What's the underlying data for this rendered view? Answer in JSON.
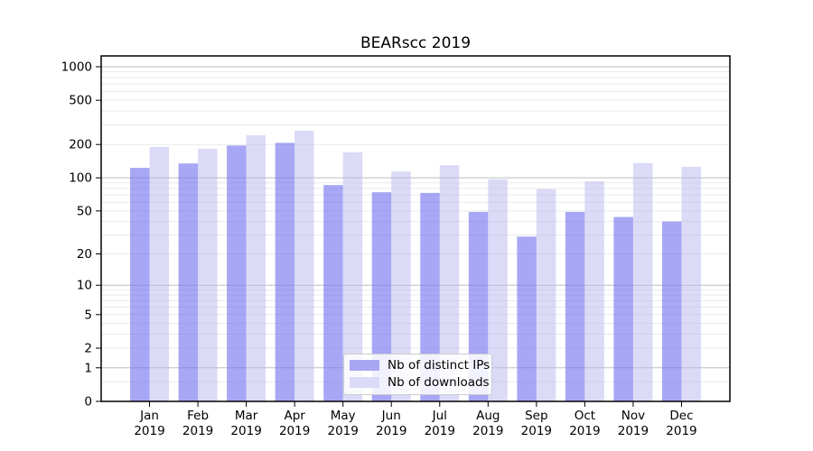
{
  "chart_data": {
    "type": "bar",
    "title": "BEARscc 2019",
    "categories": [
      "Jan",
      "Feb",
      "Mar",
      "Apr",
      "May",
      "Jun",
      "Jul",
      "Aug",
      "Sep",
      "Oct",
      "Nov",
      "Dec"
    ],
    "year": "2019",
    "yscale": "log1p",
    "ylim": [
      0,
      1250
    ],
    "yticks": [
      0,
      1,
      2,
      5,
      10,
      20,
      50,
      100,
      200,
      500,
      1000
    ],
    "grid": true,
    "legend_position": "lower-center",
    "series": [
      {
        "name": "Nb of distinct IPs",
        "color": "#a7a7f4",
        "fill": "rgba(120,120,240,0.65)",
        "values": [
          123,
          135,
          196,
          207,
          86,
          74,
          73,
          49,
          29,
          49,
          44,
          40
        ]
      },
      {
        "name": "Nb of downloads",
        "color": "#dbdbf7",
        "fill": "rgba(190,190,240,0.55)",
        "values": [
          190,
          183,
          242,
          266,
          170,
          114,
          130,
          97,
          79,
          93,
          136,
          126
        ]
      }
    ],
    "colors": {
      "major_grid": "#bdbdbd",
      "minor_grid": "#e9e9e9",
      "axis": "#000000"
    }
  }
}
